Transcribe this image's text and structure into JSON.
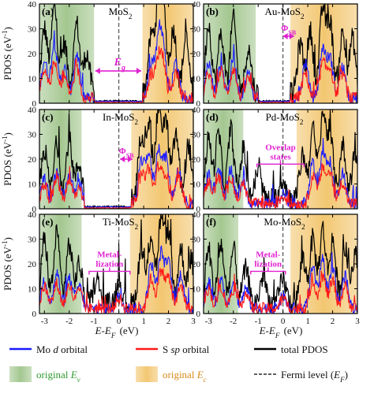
{
  "colors": {
    "mo_d": "#1a1aff",
    "s_sp": "#ff1a1a",
    "total": "#000000",
    "ev_band": "#9fc48a",
    "ec_band": "#f2c46a",
    "annotation": "#e020d0"
  },
  "chart_data": {
    "type": "line",
    "layout": "3x2 grid",
    "xlabel": "E-E_F (eV)",
    "ylabel": "PDOS (eV⁻¹)",
    "xlim": [
      -3.2,
      3.0
    ],
    "ylim": [
      0,
      40
    ],
    "xticks": [
      -3,
      -2,
      -1,
      0,
      1,
      2,
      3
    ],
    "yticks": [
      0,
      10,
      20,
      30,
      40
    ],
    "fermi_level_x": 0,
    "series_names": [
      "Mo d orbital",
      "S sp orbital",
      "total PDOS"
    ],
    "panels": [
      {
        "letter": "(a)",
        "name": "MoS₂",
        "ev_band": [
          -3.2,
          -1.0
        ],
        "ec_band": [
          0.95,
          3.0
        ],
        "gap": [
          -1.0,
          0.95
        ],
        "annotation": {
          "text": "E_g",
          "type": "arrow",
          "x_from": -0.95,
          "x_to": 0.9,
          "y": 13
        },
        "peaks_total": [
          [
            -3.0,
            26
          ],
          [
            -2.6,
            35
          ],
          [
            -2.2,
            20
          ],
          [
            -1.7,
            28
          ],
          [
            -1.3,
            16
          ],
          [
            1.3,
            22
          ],
          [
            1.6,
            35
          ],
          [
            1.8,
            30
          ],
          [
            2.2,
            26
          ],
          [
            2.7,
            22
          ]
        ],
        "peaks_mo": [
          [
            -3.0,
            15
          ],
          [
            -2.6,
            22
          ],
          [
            -2.2,
            12
          ],
          [
            -1.7,
            18
          ],
          [
            1.3,
            14
          ],
          [
            1.6,
            22
          ],
          [
            1.8,
            18
          ],
          [
            2.3,
            15
          ]
        ],
        "peaks_s": [
          [
            -3.0,
            10
          ],
          [
            -2.6,
            14
          ],
          [
            -2.2,
            9
          ],
          [
            -1.7,
            12
          ],
          [
            1.3,
            9
          ],
          [
            1.6,
            15
          ],
          [
            1.8,
            12
          ],
          [
            2.3,
            10
          ]
        ]
      },
      {
        "letter": "(b)",
        "name": "Au-MoS₂",
        "ev_band": [
          -3.2,
          -1.1
        ],
        "ec_band": [
          0.3,
          3.0
        ],
        "gap": [
          -1.0,
          0.3
        ],
        "annotation": {
          "text": "ΦSB",
          "type": "arrow",
          "x_from": 0.0,
          "x_to": 0.45,
          "y": 27
        },
        "peaks_total": [
          [
            -3.0,
            28
          ],
          [
            -2.5,
            24
          ],
          [
            -2.0,
            30
          ],
          [
            -1.4,
            18
          ],
          [
            0.7,
            20
          ],
          [
            1.1,
            25
          ],
          [
            1.6,
            34
          ],
          [
            1.9,
            28
          ],
          [
            2.4,
            24
          ],
          [
            2.8,
            22
          ]
        ],
        "peaks_mo": [
          [
            -3.0,
            14
          ],
          [
            -2.5,
            14
          ],
          [
            -2.0,
            16
          ],
          [
            -1.4,
            10
          ],
          [
            0.9,
            14
          ],
          [
            1.6,
            20
          ],
          [
            1.9,
            16
          ],
          [
            2.4,
            13
          ]
        ],
        "peaks_s": [
          [
            -3.0,
            10
          ],
          [
            -2.5,
            11
          ],
          [
            -2.0,
            12
          ],
          [
            -1.4,
            8
          ],
          [
            0.9,
            10
          ],
          [
            1.6,
            14
          ],
          [
            1.9,
            12
          ],
          [
            2.4,
            10
          ]
        ]
      },
      {
        "letter": "(c)",
        "name": "In-MoS₂",
        "ev_band": [
          -3.2,
          -1.5
        ],
        "ec_band": [
          0.5,
          3.0
        ],
        "gap": [
          -1.4,
          0.5
        ],
        "annotation": {
          "text": "ΦSB",
          "type": "arrow",
          "x_from": 0.05,
          "x_to": 0.55,
          "y": 20
        },
        "peaks_total": [
          [
            -3.0,
            20
          ],
          [
            -2.5,
            22
          ],
          [
            -2.0,
            24
          ],
          [
            -1.6,
            14
          ],
          [
            0.9,
            25
          ],
          [
            1.2,
            30
          ],
          [
            1.6,
            36
          ],
          [
            1.9,
            30
          ],
          [
            2.3,
            26
          ],
          [
            2.8,
            22
          ]
        ],
        "peaks_mo": [
          [
            -3.0,
            10
          ],
          [
            -2.5,
            12
          ],
          [
            -2.0,
            12
          ],
          [
            -1.6,
            8
          ],
          [
            0.9,
            16
          ],
          [
            1.2,
            20
          ],
          [
            1.6,
            22
          ],
          [
            1.9,
            18
          ],
          [
            2.4,
            14
          ]
        ],
        "peaks_s": [
          [
            -3.0,
            8
          ],
          [
            -2.5,
            10
          ],
          [
            -2.0,
            9
          ],
          [
            -1.6,
            6
          ],
          [
            0.9,
            11
          ],
          [
            1.2,
            14
          ],
          [
            1.6,
            15
          ],
          [
            1.9,
            12
          ],
          [
            2.4,
            10
          ]
        ]
      },
      {
        "letter": "(d)",
        "name": "Pd-MoS₂",
        "ev_band": [
          -3.2,
          -1.6
        ],
        "ec_band": [
          0.55,
          3.0
        ],
        "gap": null,
        "annotation": {
          "text": "Overlap|states",
          "type": "bracket",
          "x_from": -1.05,
          "x_to": 0.85,
          "y": 18
        },
        "peaks_total": [
          [
            -3.0,
            24
          ],
          [
            -2.6,
            26
          ],
          [
            -2.1,
            28
          ],
          [
            -1.6,
            20
          ],
          [
            -1.0,
            12
          ],
          [
            0.0,
            8
          ],
          [
            0.8,
            18
          ],
          [
            1.2,
            28
          ],
          [
            1.6,
            34
          ],
          [
            1.9,
            26
          ],
          [
            2.4,
            22
          ],
          [
            2.9,
            18
          ]
        ],
        "peaks_mo": [
          [
            -3.0,
            12
          ],
          [
            -2.6,
            14
          ],
          [
            -2.1,
            14
          ],
          [
            -1.6,
            10
          ],
          [
            0.0,
            4
          ],
          [
            1.2,
            16
          ],
          [
            1.6,
            20
          ],
          [
            1.9,
            16
          ],
          [
            2.4,
            13
          ]
        ],
        "peaks_s": [
          [
            -3.0,
            9
          ],
          [
            -2.6,
            11
          ],
          [
            -2.1,
            11
          ],
          [
            -1.6,
            8
          ],
          [
            0.0,
            3
          ],
          [
            1.2,
            11
          ],
          [
            1.6,
            14
          ],
          [
            1.9,
            12
          ],
          [
            2.4,
            9
          ]
        ]
      },
      {
        "letter": "(e)",
        "name": "Ti-MoS₂",
        "ev_band": [
          -3.2,
          -1.5
        ],
        "ec_band": [
          0.45,
          3.0
        ],
        "gap": null,
        "annotation": {
          "text": "Metal-|lization",
          "type": "bracket",
          "x_from": -1.2,
          "x_to": 0.45,
          "y": 17
        },
        "peaks_total": [
          [
            -3.0,
            26
          ],
          [
            -2.5,
            28
          ],
          [
            -2.0,
            24
          ],
          [
            -1.6,
            16
          ],
          [
            -0.9,
            10
          ],
          [
            0.0,
            9
          ],
          [
            0.9,
            22
          ],
          [
            1.3,
            28
          ],
          [
            1.7,
            34
          ],
          [
            2.0,
            28
          ],
          [
            2.5,
            22
          ],
          [
            2.9,
            18
          ]
        ],
        "peaks_mo": [
          [
            -3.0,
            12
          ],
          [
            -2.5,
            14
          ],
          [
            -2.0,
            12
          ],
          [
            -1.6,
            9
          ],
          [
            0.0,
            5
          ],
          [
            1.3,
            18
          ],
          [
            1.7,
            22
          ],
          [
            2.0,
            18
          ],
          [
            2.5,
            14
          ]
        ],
        "peaks_s": [
          [
            -3.0,
            9
          ],
          [
            -2.5,
            10
          ],
          [
            -2.0,
            9
          ],
          [
            -1.6,
            7
          ],
          [
            0.0,
            4
          ],
          [
            1.3,
            12
          ],
          [
            1.7,
            15
          ],
          [
            2.0,
            12
          ],
          [
            2.5,
            9
          ]
        ]
      },
      {
        "letter": "(f)",
        "name": "Mo-MoS₂",
        "ev_band": [
          -3.2,
          -1.8
        ],
        "ec_band": [
          0.3,
          3.0
        ],
        "gap": null,
        "annotation": {
          "text": "Metal-|lization",
          "type": "bracket",
          "x_from": -1.3,
          "x_to": 0.1,
          "y": 17
        },
        "peaks_total": [
          [
            -3.0,
            22
          ],
          [
            -2.5,
            24
          ],
          [
            -2.0,
            22
          ],
          [
            -1.5,
            14
          ],
          [
            -0.8,
            11
          ],
          [
            0.0,
            10
          ],
          [
            0.8,
            18
          ],
          [
            1.2,
            26
          ],
          [
            1.6,
            30
          ],
          [
            2.0,
            26
          ],
          [
            2.5,
            22
          ],
          [
            2.9,
            20
          ]
        ],
        "peaks_mo": [
          [
            -3.0,
            11
          ],
          [
            -2.5,
            12
          ],
          [
            -2.0,
            11
          ],
          [
            -1.5,
            8
          ],
          [
            0.0,
            5
          ],
          [
            1.2,
            16
          ],
          [
            1.6,
            19
          ],
          [
            2.0,
            16
          ],
          [
            2.5,
            13
          ]
        ],
        "peaks_s": [
          [
            -3.0,
            8
          ],
          [
            -2.5,
            9
          ],
          [
            -2.0,
            8
          ],
          [
            -1.5,
            6
          ],
          [
            0.0,
            4
          ],
          [
            1.2,
            11
          ],
          [
            1.6,
            13
          ],
          [
            2.0,
            11
          ],
          [
            2.5,
            9
          ]
        ]
      }
    ],
    "legend": [
      {
        "type": "line",
        "label": "Mo ",
        "label_italic": "d",
        "label_rest": " orbital",
        "color": "#1a1aff"
      },
      {
        "type": "line",
        "label": "S ",
        "label_italic": "sp",
        "label_rest": " orbital",
        "color": "#ff1a1a"
      },
      {
        "type": "line",
        "label": "total PDOS",
        "label_italic": "",
        "label_rest": "",
        "color": "#000000"
      },
      {
        "type": "swatch",
        "label": "original ",
        "label_italic": "E",
        "label_sub": "v",
        "color": "#9fc48a",
        "text_color": "#2f9a2f"
      },
      {
        "type": "swatch",
        "label": "original ",
        "label_italic": "E",
        "label_sub": "c",
        "color": "#f2c46a",
        "text_color": "#d98a1a"
      },
      {
        "type": "dashed",
        "label": "Fermi level (",
        "label_italic": "E",
        "label_sub": "F",
        "label_rest": ")",
        "color": "#000000"
      }
    ]
  }
}
